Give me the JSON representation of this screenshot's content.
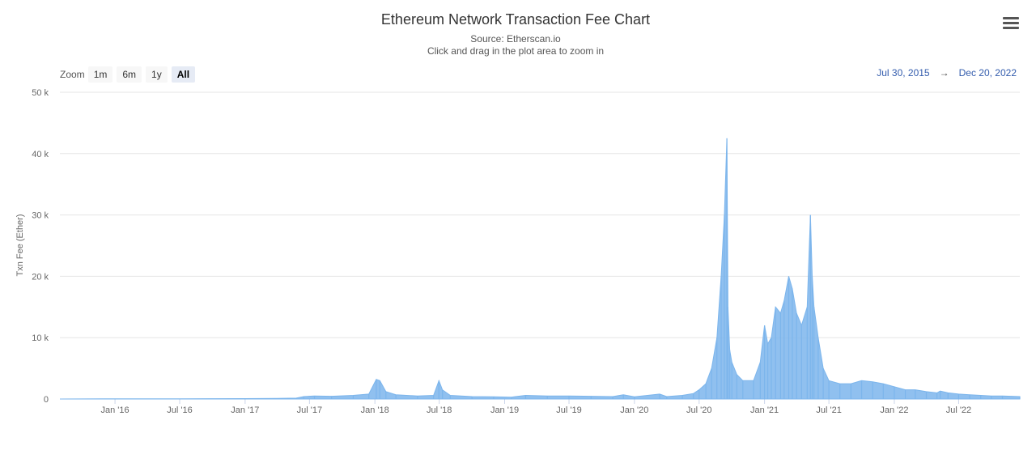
{
  "header": {
    "title": "Ethereum Network Transaction Fee Chart",
    "subtitle_source": "Source: Etherscan.io",
    "subtitle_hint": "Click and drag in the plot area to zoom in"
  },
  "menu": {
    "icon": "hamburger-menu-icon"
  },
  "zoom": {
    "label": "Zoom",
    "buttons": [
      "1m",
      "6m",
      "1y",
      "All"
    ],
    "active": "All"
  },
  "range": {
    "from": "Jul 30, 2015",
    "arrow": "→",
    "to": "Dec 20, 2022"
  },
  "colors": {
    "series": "#7cb5ec",
    "grid": "#e6e6e6",
    "axis_text": "#666666",
    "range_text": "#335cad"
  },
  "chart_data": {
    "type": "area",
    "title": "Ethereum Network Transaction Fee Chart",
    "subtitle": "Source: Etherscan.io",
    "xlabel": "",
    "ylabel": "Txn Fee (Ether)",
    "xlim": [
      "2015-07-30",
      "2022-12-20"
    ],
    "ylim": [
      0,
      50000
    ],
    "y_ticks": [
      0,
      10000,
      20000,
      30000,
      40000,
      50000
    ],
    "y_tick_labels": [
      "0",
      "10 k",
      "20 k",
      "30 k",
      "40 k",
      "50 k"
    ],
    "x_ticks": [
      "2016-01-01",
      "2016-07-01",
      "2017-01-01",
      "2017-07-01",
      "2018-01-01",
      "2018-07-01",
      "2019-01-01",
      "2019-07-01",
      "2020-01-01",
      "2020-07-01",
      "2021-01-01",
      "2021-07-01",
      "2022-01-01",
      "2022-07-01"
    ],
    "x_tick_labels": [
      "Jan '16",
      "Jul '16",
      "Jan '17",
      "Jul '17",
      "Jan '18",
      "Jul '18",
      "Jan '19",
      "Jul '19",
      "Jan '20",
      "Jul '20",
      "Jan '21",
      "Jul '21",
      "Jan '22",
      "Jul '22"
    ],
    "grid": true,
    "legend": "none",
    "series": [
      {
        "x": [
          "2015-07-30",
          "2016-01-01",
          "2016-07-01",
          "2017-01-01",
          "2017-04-01",
          "2017-05-25",
          "2017-06-15",
          "2017-07-15",
          "2017-09-01",
          "2017-11-01",
          "2017-12-15",
          "2018-01-05",
          "2018-01-15",
          "2018-02-01",
          "2018-03-01",
          "2018-05-01",
          "2018-06-15",
          "2018-06-30",
          "2018-07-10",
          "2018-08-01",
          "2018-10-01",
          "2018-12-01",
          "2019-01-20",
          "2019-03-01",
          "2019-05-01",
          "2019-07-01",
          "2019-09-01",
          "2019-11-01",
          "2019-12-01",
          "2020-01-01",
          "2020-03-12",
          "2020-04-01",
          "2020-05-15",
          "2020-06-15",
          "2020-07-01",
          "2020-07-20",
          "2020-08-05",
          "2020-08-20",
          "2020-09-01",
          "2020-09-10",
          "2020-09-17",
          "2020-09-20",
          "2020-09-25",
          "2020-10-01",
          "2020-10-15",
          "2020-11-01",
          "2020-12-01",
          "2020-12-20",
          "2021-01-01",
          "2021-01-10",
          "2021-01-20",
          "2021-02-01",
          "2021-02-15",
          "2021-02-25",
          "2021-03-10",
          "2021-03-20",
          "2021-04-01",
          "2021-04-15",
          "2021-05-01",
          "2021-05-10",
          "2021-05-15",
          "2021-05-20",
          "2021-06-01",
          "2021-06-15",
          "2021-07-01",
          "2021-08-01",
          "2021-09-01",
          "2021-10-01",
          "2021-11-01",
          "2021-12-01",
          "2022-01-01",
          "2022-02-01",
          "2022-03-01",
          "2022-04-01",
          "2022-05-01",
          "2022-05-10",
          "2022-06-01",
          "2022-07-01",
          "2022-08-01",
          "2022-09-01",
          "2022-10-01",
          "2022-11-01",
          "2022-12-20"
        ],
        "y": [
          0,
          40,
          30,
          60,
          90,
          150,
          400,
          500,
          450,
          600,
          800,
          3200,
          3000,
          1200,
          700,
          500,
          600,
          3000,
          1500,
          600,
          400,
          350,
          300,
          600,
          500,
          500,
          450,
          400,
          700,
          350,
          800,
          400,
          600,
          900,
          1500,
          2500,
          5000,
          10000,
          20000,
          30000,
          42500,
          15000,
          8000,
          6000,
          4000,
          3000,
          3000,
          6000,
          12000,
          9000,
          10000,
          15000,
          14000,
          16000,
          20000,
          18000,
          14000,
          12000,
          15000,
          30000,
          20000,
          15000,
          10000,
          5000,
          3000,
          2500,
          2500,
          3000,
          2800,
          2500,
          2000,
          1500,
          1500,
          1200,
          1000,
          1300,
          1000,
          800,
          700,
          600,
          500,
          500,
          400
        ]
      }
    ]
  }
}
